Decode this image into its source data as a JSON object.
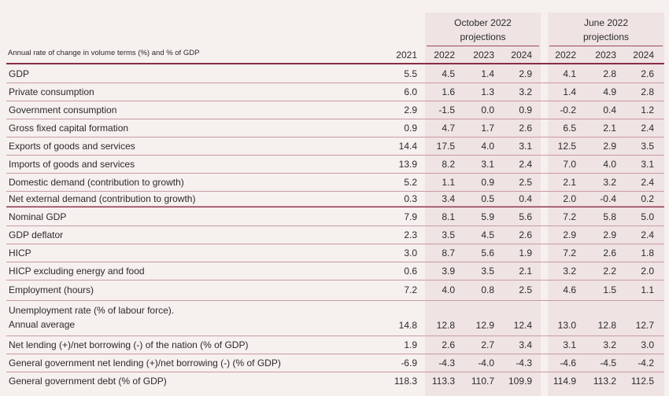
{
  "header": {
    "units_label": "Annual rate of change in volume terms (%) and % of GDP",
    "group_oct": [
      "October 2022",
      "projections"
    ],
    "group_jun": [
      "June 2022",
      "projections"
    ],
    "years": [
      "2021",
      "2022",
      "2023",
      "2024",
      "2022",
      "2023",
      "2024"
    ]
  },
  "rows": [
    {
      "label": "GDP",
      "values": [
        "5.5",
        "4.5",
        "1.4",
        "2.9",
        "4.1",
        "2.8",
        "2.6"
      ]
    },
    {
      "label": "Private consumption",
      "values": [
        "6.0",
        "1.6",
        "1.3",
        "3.2",
        "1.4",
        "4.9",
        "2.8"
      ]
    },
    {
      "label": "Government consumption",
      "values": [
        "2.9",
        "-1.5",
        "0.0",
        "0.9",
        "-0.2",
        "0.4",
        "1.2"
      ]
    },
    {
      "label": "Gross fixed capital formation",
      "values": [
        "0.9",
        "4.7",
        "1.7",
        "2.6",
        "6.5",
        "2.1",
        "2.4"
      ]
    },
    {
      "label": "Exports of goods and services",
      "values": [
        "14.4",
        "17.5",
        "4.0",
        "3.1",
        "12.5",
        "2.9",
        "3.5"
      ]
    },
    {
      "label": "Imports of goods and services",
      "values": [
        "13.9",
        "8.2",
        "3.1",
        "2.4",
        "7.0",
        "4.0",
        "3.1"
      ]
    },
    {
      "label": "Domestic demand (contribution to growth)",
      "values": [
        "5.2",
        "1.1",
        "0.9",
        "2.5",
        "2.1",
        "3.2",
        "2.4"
      ]
    },
    {
      "label": "Net external demand (contribution to growth)",
      "values": [
        "0.3",
        "3.4",
        "0.5",
        "0.4",
        "2.0",
        "-0.4",
        "0.2"
      ]
    },
    {
      "label": "Nominal GDP",
      "values": [
        "7.9",
        "8.1",
        "5.9",
        "5.6",
        "7.2",
        "5.8",
        "5.0"
      ]
    },
    {
      "label": "GDP deflator",
      "values": [
        "2.3",
        "3.5",
        "4.5",
        "2.6",
        "2.9",
        "2.9",
        "2.4"
      ]
    },
    {
      "label": "HICP",
      "values": [
        "3.0",
        "8.7",
        "5.6",
        "1.9",
        "7.2",
        "2.6",
        "1.8"
      ]
    },
    {
      "label": "HICP excluding energy and food",
      "values": [
        "0.6",
        "3.9",
        "3.5",
        "2.1",
        "3.2",
        "2.2",
        "2.0"
      ]
    },
    {
      "label": "Employment (hours)",
      "values": [
        "7.2",
        "4.0",
        "0.8",
        "2.5",
        "4.6",
        "1.5",
        "1.1"
      ]
    },
    {
      "label": "Unemployment rate (% of labour force).",
      "label2": "Annual average",
      "values": [
        "14.8",
        "12.8",
        "12.9",
        "12.4",
        "13.0",
        "12.8",
        "12.7"
      ]
    },
    {
      "label": "Net lending (+)/net borrowing (-) of the nation (% of GDP)",
      "values": [
        "1.9",
        "2.6",
        "2.7",
        "3.4",
        "3.1",
        "3.2",
        "3.0"
      ]
    },
    {
      "label": "General government net lending (+)/net borrowing (-) (% of GDP)",
      "values": [
        "-6.9",
        "-4.3",
        "-4.0",
        "-4.3",
        "-4.6",
        "-4.5",
        "-4.2"
      ]
    },
    {
      "label": "General government debt (% of GDP)",
      "values": [
        "118.3",
        "113.3",
        "110.7",
        "109.9",
        "114.9",
        "113.2",
        "112.5"
      ]
    }
  ]
}
